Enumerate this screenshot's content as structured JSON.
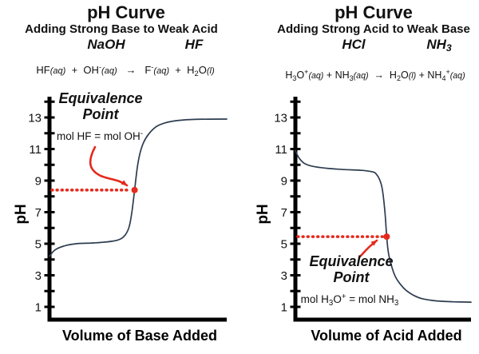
{
  "colors": {
    "accent": "#e5291d",
    "curve": "#2d3c4f",
    "axis": "#000000"
  },
  "chart_data": [
    {
      "type": "line",
      "title": "pH Curve",
      "subtitle": "Adding Strong Base to Weak Acid",
      "reagent_titrant_tokens": [
        {
          "t": "NaOH"
        }
      ],
      "reagent_analyte_tokens": [
        {
          "t": "HF"
        }
      ],
      "equation_tokens": [
        {
          "t": "HF"
        },
        {
          "t": "(aq)",
          "s": "i"
        },
        {
          "t": "  +  "
        },
        {
          "t": "OH"
        },
        {
          "t": "-",
          "s": "p"
        },
        {
          "t": "(aq)",
          "s": "i"
        },
        {
          "t": "   →   "
        },
        {
          "t": "F"
        },
        {
          "t": "-",
          "s": "p"
        },
        {
          "t": "(aq)",
          "s": "i"
        },
        {
          "t": "  +  "
        },
        {
          "t": "H"
        },
        {
          "t": "2",
          "s": "b"
        },
        {
          "t": "O"
        },
        {
          "t": "(l)",
          "s": "i"
        }
      ],
      "equivalence_label_lines": [
        "Equivalence",
        "Point"
      ],
      "mol_label_tokens": [
        {
          "t": "mol HF = mol OH"
        },
        {
          "t": "-",
          "s": "p"
        }
      ],
      "xlabel": "Volume of Base Added",
      "ylabel": "pH",
      "ylim": [
        0,
        14
      ],
      "yticks": [
        1,
        3,
        5,
        7,
        9,
        11,
        13
      ],
      "x_note": "x axis unlabeled; values are relative volume of titrant added (0-100)",
      "grid": false,
      "series": [
        {
          "name": "pH vs volume of NaOH added to HF",
          "x": [
            0,
            3,
            8,
            15,
            25,
            35,
            40,
            43,
            45,
            46.5,
            48,
            49.5,
            51,
            53,
            56,
            60,
            65,
            72,
            82,
            100
          ],
          "y": [
            4.2,
            4.6,
            4.85,
            5.0,
            5.05,
            5.15,
            5.3,
            5.6,
            6.1,
            7.0,
            8.4,
            9.8,
            10.7,
            11.4,
            11.95,
            12.4,
            12.65,
            12.8,
            12.88,
            12.9
          ]
        }
      ],
      "equivalence_point": {
        "x": 48,
        "ph": 8.4
      }
    },
    {
      "type": "line",
      "title": "pH Curve",
      "subtitle": "Adding Strong Acid to Weak Base",
      "reagent_titrant_tokens": [
        {
          "t": "HCl"
        }
      ],
      "reagent_analyte_tokens": [
        {
          "t": "NH"
        },
        {
          "t": "3",
          "s": "b"
        }
      ],
      "equation_tokens": [
        {
          "t": "H"
        },
        {
          "t": "3",
          "s": "b"
        },
        {
          "t": "O"
        },
        {
          "t": "+",
          "s": "p"
        },
        {
          "t": "(aq)",
          "s": "i"
        },
        {
          "t": " + "
        },
        {
          "t": "NH"
        },
        {
          "t": "3",
          "s": "b"
        },
        {
          "t": "(aq)",
          "s": "i"
        },
        {
          "t": "  →  "
        },
        {
          "t": "H"
        },
        {
          "t": "2",
          "s": "b"
        },
        {
          "t": "O"
        },
        {
          "t": "(l)",
          "s": "i"
        },
        {
          "t": " + "
        },
        {
          "t": "NH"
        },
        {
          "t": "4",
          "s": "b"
        },
        {
          "t": "+",
          "s": "p"
        },
        {
          "t": "(aq)",
          "s": "i"
        }
      ],
      "equivalence_label_lines": [
        "Equivalence",
        "Point"
      ],
      "mol_label_tokens": [
        {
          "t": "mol H"
        },
        {
          "t": "3",
          "s": "b"
        },
        {
          "t": "O"
        },
        {
          "t": "+",
          "s": "p"
        },
        {
          "t": " = mol NH"
        },
        {
          "t": "3",
          "s": "b"
        }
      ],
      "xlabel": "Volume of Acid Added",
      "ylabel": "pH",
      "ylim": [
        0,
        14
      ],
      "yticks": [
        1,
        3,
        5,
        7,
        9,
        11,
        13
      ],
      "x_note": "x axis unlabeled; values are relative volume of titrant added (0-100)",
      "grid": false,
      "series": [
        {
          "name": "pH vs volume of HCl added to NH3",
          "x": [
            0,
            2,
            5,
            10,
            18,
            28,
            38,
            44,
            46,
            48,
            49.5,
            51,
            52,
            53,
            55,
            57,
            60,
            63,
            67,
            72,
            80,
            90,
            100
          ],
          "y": [
            10.9,
            10.45,
            10.1,
            9.9,
            9.78,
            9.7,
            9.65,
            9.55,
            9.42,
            9.05,
            8.45,
            7.0,
            5.45,
            4.4,
            3.5,
            2.9,
            2.4,
            2.05,
            1.75,
            1.52,
            1.38,
            1.32,
            1.3
          ]
        }
      ],
      "equivalence_point": {
        "x": 52,
        "ph": 5.45
      }
    }
  ]
}
